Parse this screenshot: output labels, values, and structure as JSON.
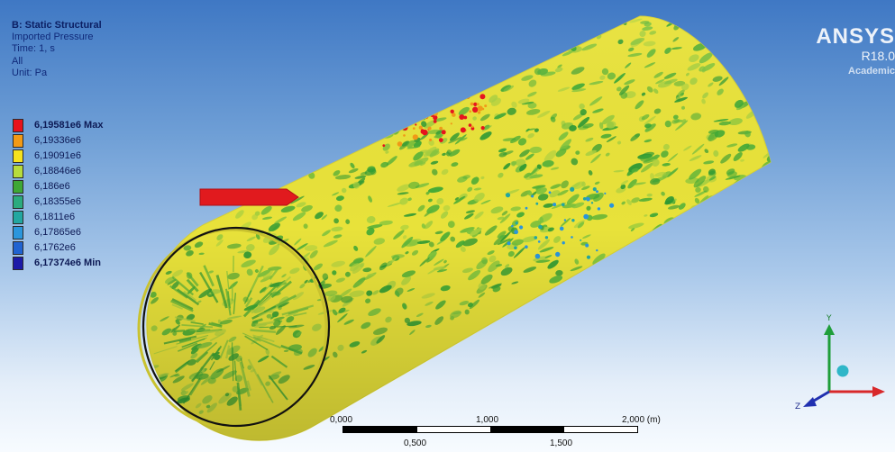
{
  "info": {
    "title": "B: Static Structural",
    "result": "Imported Pressure",
    "time": "Time: 1, s",
    "scope": "All",
    "unit": "Unit: Pa"
  },
  "legend": [
    {
      "label": "6,19581e6 Max",
      "color": "#e8121b",
      "bold": true
    },
    {
      "label": "6,19336e6",
      "color": "#f39a15",
      "bold": false
    },
    {
      "label": "6,19091e6",
      "color": "#f6e21d",
      "bold": false
    },
    {
      "label": "6,18846e6",
      "color": "#b7dc3c",
      "bold": false
    },
    {
      "label": "6,186e6",
      "color": "#3ea836",
      "bold": false
    },
    {
      "label": "6,18355e6",
      "color": "#2bab7e",
      "bold": false
    },
    {
      "label": "6,1811e6",
      "color": "#23a7a1",
      "bold": false
    },
    {
      "label": "6,17865e6",
      "color": "#2b96dc",
      "bold": false
    },
    {
      "label": "6,1762e6",
      "color": "#2063d1",
      "bold": false
    },
    {
      "label": "6,17374e6 Min",
      "color": "#1c1aa8",
      "bold": true
    }
  ],
  "logo": {
    "brand": "ANSYS",
    "version": "R18.0",
    "edition": "Academic"
  },
  "scale": {
    "top_labels": [
      "0,000",
      "1,000",
      "2,000 (m)"
    ],
    "bottom_labels": [
      "0,500",
      "1,500"
    ]
  },
  "triad": {
    "y_label": "Y",
    "z_label": "Z",
    "colors": {
      "y": "#1f9e3a",
      "z": "#2030b0",
      "x": "#d8282a",
      "ball": "#2fb6c8"
    }
  },
  "colors": {
    "cylinder_base": "#e8e23a",
    "arrow": "#e11a1e",
    "circle": "#111111"
  }
}
